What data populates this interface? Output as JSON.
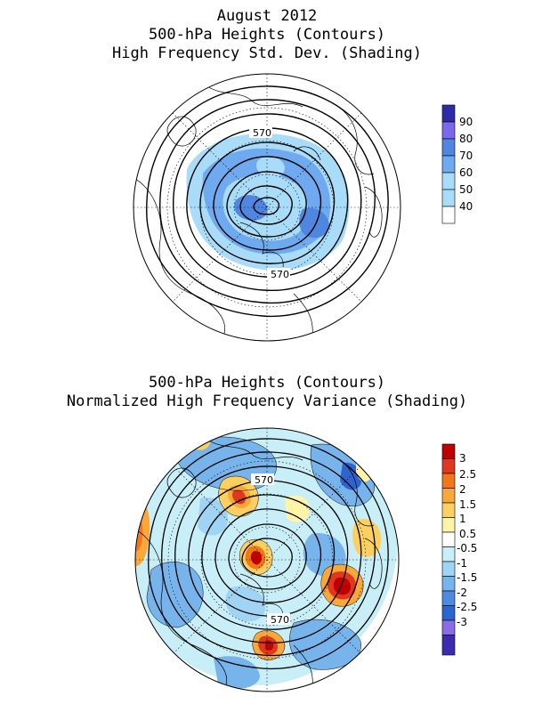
{
  "top_panel": {
    "title_lines": [
      "August 2012",
      "500-hPa Heights (Contours)",
      "High Frequency Std. Dev. (Shading)"
    ],
    "contour_labels": [
      "570",
      "570"
    ],
    "colorbar": {
      "labels": [
        "90",
        "80",
        "70",
        "60",
        "50",
        "40"
      ],
      "colors": [
        "#2c2ca8",
        "#7b68ee",
        "#4f86e0",
        "#6fa9f0",
        "#a8dcf8",
        "#ffffff"
      ]
    }
  },
  "bottom_panel": {
    "title_lines": [
      "500-hPa Heights (Contours)",
      "Normalized High Frequency Variance (Shading)"
    ],
    "contour_labels": [
      "570",
      "570"
    ],
    "colorbar": {
      "labels": [
        "3",
        "2.5",
        "2",
        "1.5",
        "1",
        "0.5",
        "-0.5",
        "-1",
        "-1.5",
        "-2",
        "-2.5",
        "-3"
      ],
      "colors": [
        "#c00000",
        "#e03820",
        "#f07818",
        "#f8a838",
        "#fcd060",
        "#fff4a8",
        "#ffffff",
        "#c8eef8",
        "#a0d4f4",
        "#78b4ec",
        "#4c8ce0",
        "#2c64d0",
        "#8a6ce8",
        "#3c2cb0"
      ]
    }
  }
}
